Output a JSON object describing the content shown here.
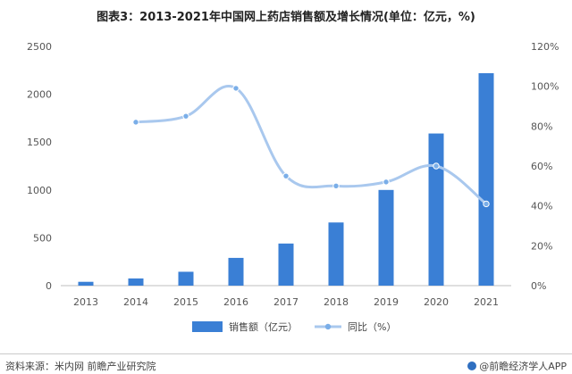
{
  "chart_data": {
    "type": "bar",
    "title": "图表3：2013-2021年中国网上药店销售额及增长情况(单位：亿元，%)",
    "categories": [
      "2013",
      "2014",
      "2015",
      "2016",
      "2017",
      "2018",
      "2019",
      "2020",
      "2021"
    ],
    "series": [
      {
        "name": "销售额（亿元）",
        "type": "bar",
        "axis": "left",
        "values": [
          40,
          75,
          145,
          290,
          440,
          660,
          1000,
          1590,
          2220
        ]
      },
      {
        "name": "同比（%）",
        "type": "line",
        "smooth": true,
        "axis": "right",
        "values": [
          null,
          82,
          85,
          99,
          55,
          50,
          52,
          60,
          41
        ]
      }
    ],
    "y_left": {
      "min": 0,
      "max": 2500,
      "ticks": [
        "0",
        "500",
        "1000",
        "1500",
        "2000",
        "2500"
      ]
    },
    "y_right": {
      "min": 0,
      "max": 120,
      "ticks": [
        "0%",
        "20%",
        "40%",
        "60%",
        "80%",
        "100%",
        "120%"
      ]
    },
    "legend_position": "bottom",
    "grid": false
  },
  "colors": {
    "bar": "#3a7fd5",
    "line": "#a9c8ee",
    "marker": "#7aaee8",
    "axis": "#bfbfbf"
  },
  "footer": {
    "source": "资料来源：米内网 前瞻产业研究院",
    "brand": "@前瞻经济学人APP"
  }
}
